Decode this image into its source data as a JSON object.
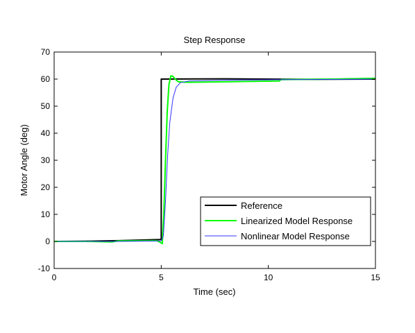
{
  "chart_data": {
    "type": "line",
    "title": "Step Response",
    "xlabel": "Time (sec)",
    "ylabel": "Motor Angle (deg)",
    "xlim": [
      0,
      15
    ],
    "ylim": [
      -10,
      70
    ],
    "x_ticks": [
      0,
      5,
      10,
      15
    ],
    "y_ticks": [
      -10,
      0,
      10,
      20,
      30,
      40,
      50,
      60,
      70
    ],
    "grid": false,
    "legend_position": "bottom-right",
    "series": [
      {
        "name": "Reference",
        "color": "#000000",
        "points": [
          [
            0,
            0
          ],
          [
            1.5,
            0.1
          ],
          [
            3,
            0.3
          ],
          [
            5.0,
            0.7
          ],
          [
            5.0,
            60
          ],
          [
            8,
            60.1
          ],
          [
            12,
            59.9
          ],
          [
            15,
            60
          ]
        ]
      },
      {
        "name": "Linearized Model Response",
        "color": "#00ff00",
        "points": [
          [
            0,
            0
          ],
          [
            1.5,
            0
          ],
          [
            2.7,
            -0.2
          ],
          [
            3,
            0.2
          ],
          [
            4.8,
            0.3
          ],
          [
            4.95,
            -0.3
          ],
          [
            5.05,
            -0.8
          ],
          [
            5.12,
            10
          ],
          [
            5.2,
            30
          ],
          [
            5.28,
            48
          ],
          [
            5.36,
            58
          ],
          [
            5.45,
            61.2
          ],
          [
            5.55,
            61
          ],
          [
            5.65,
            60
          ],
          [
            5.8,
            59
          ],
          [
            6.2,
            58.8
          ],
          [
            8,
            59
          ],
          [
            10.5,
            59.3
          ],
          [
            10.6,
            59.8
          ],
          [
            13,
            60
          ],
          [
            15,
            60.3
          ]
        ]
      },
      {
        "name": "Nonlinear Model Response",
        "color": "#3333ff",
        "points": [
          [
            0,
            0
          ],
          [
            3,
            0
          ],
          [
            5.0,
            0.2
          ],
          [
            5.1,
            2
          ],
          [
            5.2,
            15
          ],
          [
            5.3,
            32
          ],
          [
            5.4,
            44
          ],
          [
            5.55,
            53
          ],
          [
            5.7,
            57
          ],
          [
            5.9,
            58.7
          ],
          [
            6.3,
            59.3
          ],
          [
            8,
            59.6
          ],
          [
            11,
            59.8
          ],
          [
            15,
            60
          ]
        ]
      }
    ]
  }
}
